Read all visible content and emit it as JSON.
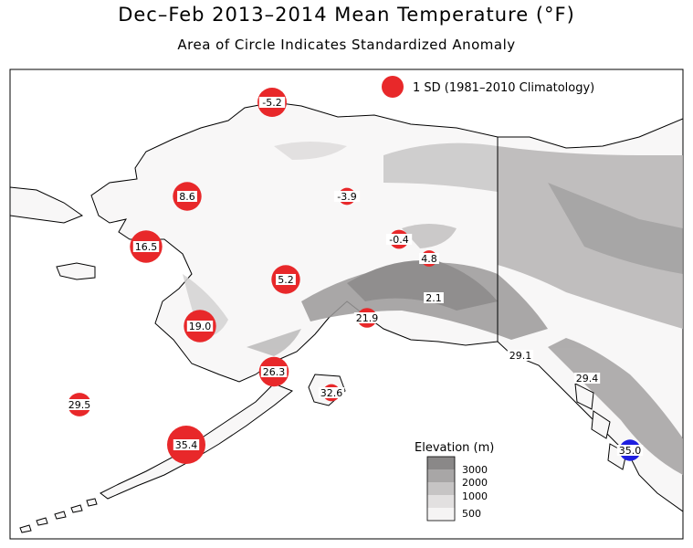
{
  "map": {
    "title": "Dec–Feb 2013–2014 Mean Temperature (°F)",
    "subtitle": "Area of Circle Indicates Standardized Anomaly",
    "legend": {
      "circle_label": "1 SD (1981–2010 Climatology)",
      "circle_color": "#e8282a"
    },
    "elevation_legend": {
      "title": "Elevation (m)",
      "levels": [
        "3000",
        "2000",
        "1000",
        "500"
      ],
      "colors": [
        "#8a8888",
        "#a8a6a6",
        "#c6c4c4",
        "#e2e0e0",
        "#f5f4f4"
      ]
    },
    "colors": {
      "positive": "#e8282a",
      "negative": "#1f1fe0",
      "land": "#f8f7f7",
      "terrain": "#b0aeae"
    }
  },
  "chart_data": {
    "type": "map",
    "units": "°F",
    "stations": [
      {
        "value": "-5.2",
        "anomaly_sd": 1.3,
        "sign": "positive"
      },
      {
        "value": "8.6",
        "anomaly_sd": 1.25,
        "sign": "positive"
      },
      {
        "value": "-3.9",
        "anomaly_sd": 0.45,
        "sign": "positive"
      },
      {
        "value": "16.5",
        "anomaly_sd": 1.6,
        "sign": "positive"
      },
      {
        "value": "-0.4",
        "anomaly_sd": 0.55,
        "sign": "positive"
      },
      {
        "value": "4.8",
        "anomaly_sd": 0.4,
        "sign": "positive"
      },
      {
        "value": "5.2",
        "anomaly_sd": 1.25,
        "sign": "positive"
      },
      {
        "value": "2.1",
        "anomaly_sd": 0.15,
        "sign": "positive"
      },
      {
        "value": "19.0",
        "anomaly_sd": 1.6,
        "sign": "positive"
      },
      {
        "value": "21.9",
        "anomaly_sd": 0.6,
        "sign": "positive"
      },
      {
        "value": "29.1",
        "anomaly_sd": 0.0,
        "sign": "positive"
      },
      {
        "value": "26.3",
        "anomaly_sd": 1.35,
        "sign": "positive"
      },
      {
        "value": "29.4",
        "anomaly_sd": 0.0,
        "sign": "positive"
      },
      {
        "value": "32.6",
        "anomaly_sd": 0.45,
        "sign": "positive"
      },
      {
        "value": "29.5",
        "anomaly_sd": 0.85,
        "sign": "positive"
      },
      {
        "value": "35.4",
        "anomaly_sd": 2.25,
        "sign": "positive"
      },
      {
        "value": "35.0",
        "anomaly_sd": 0.7,
        "sign": "negative"
      }
    ]
  }
}
